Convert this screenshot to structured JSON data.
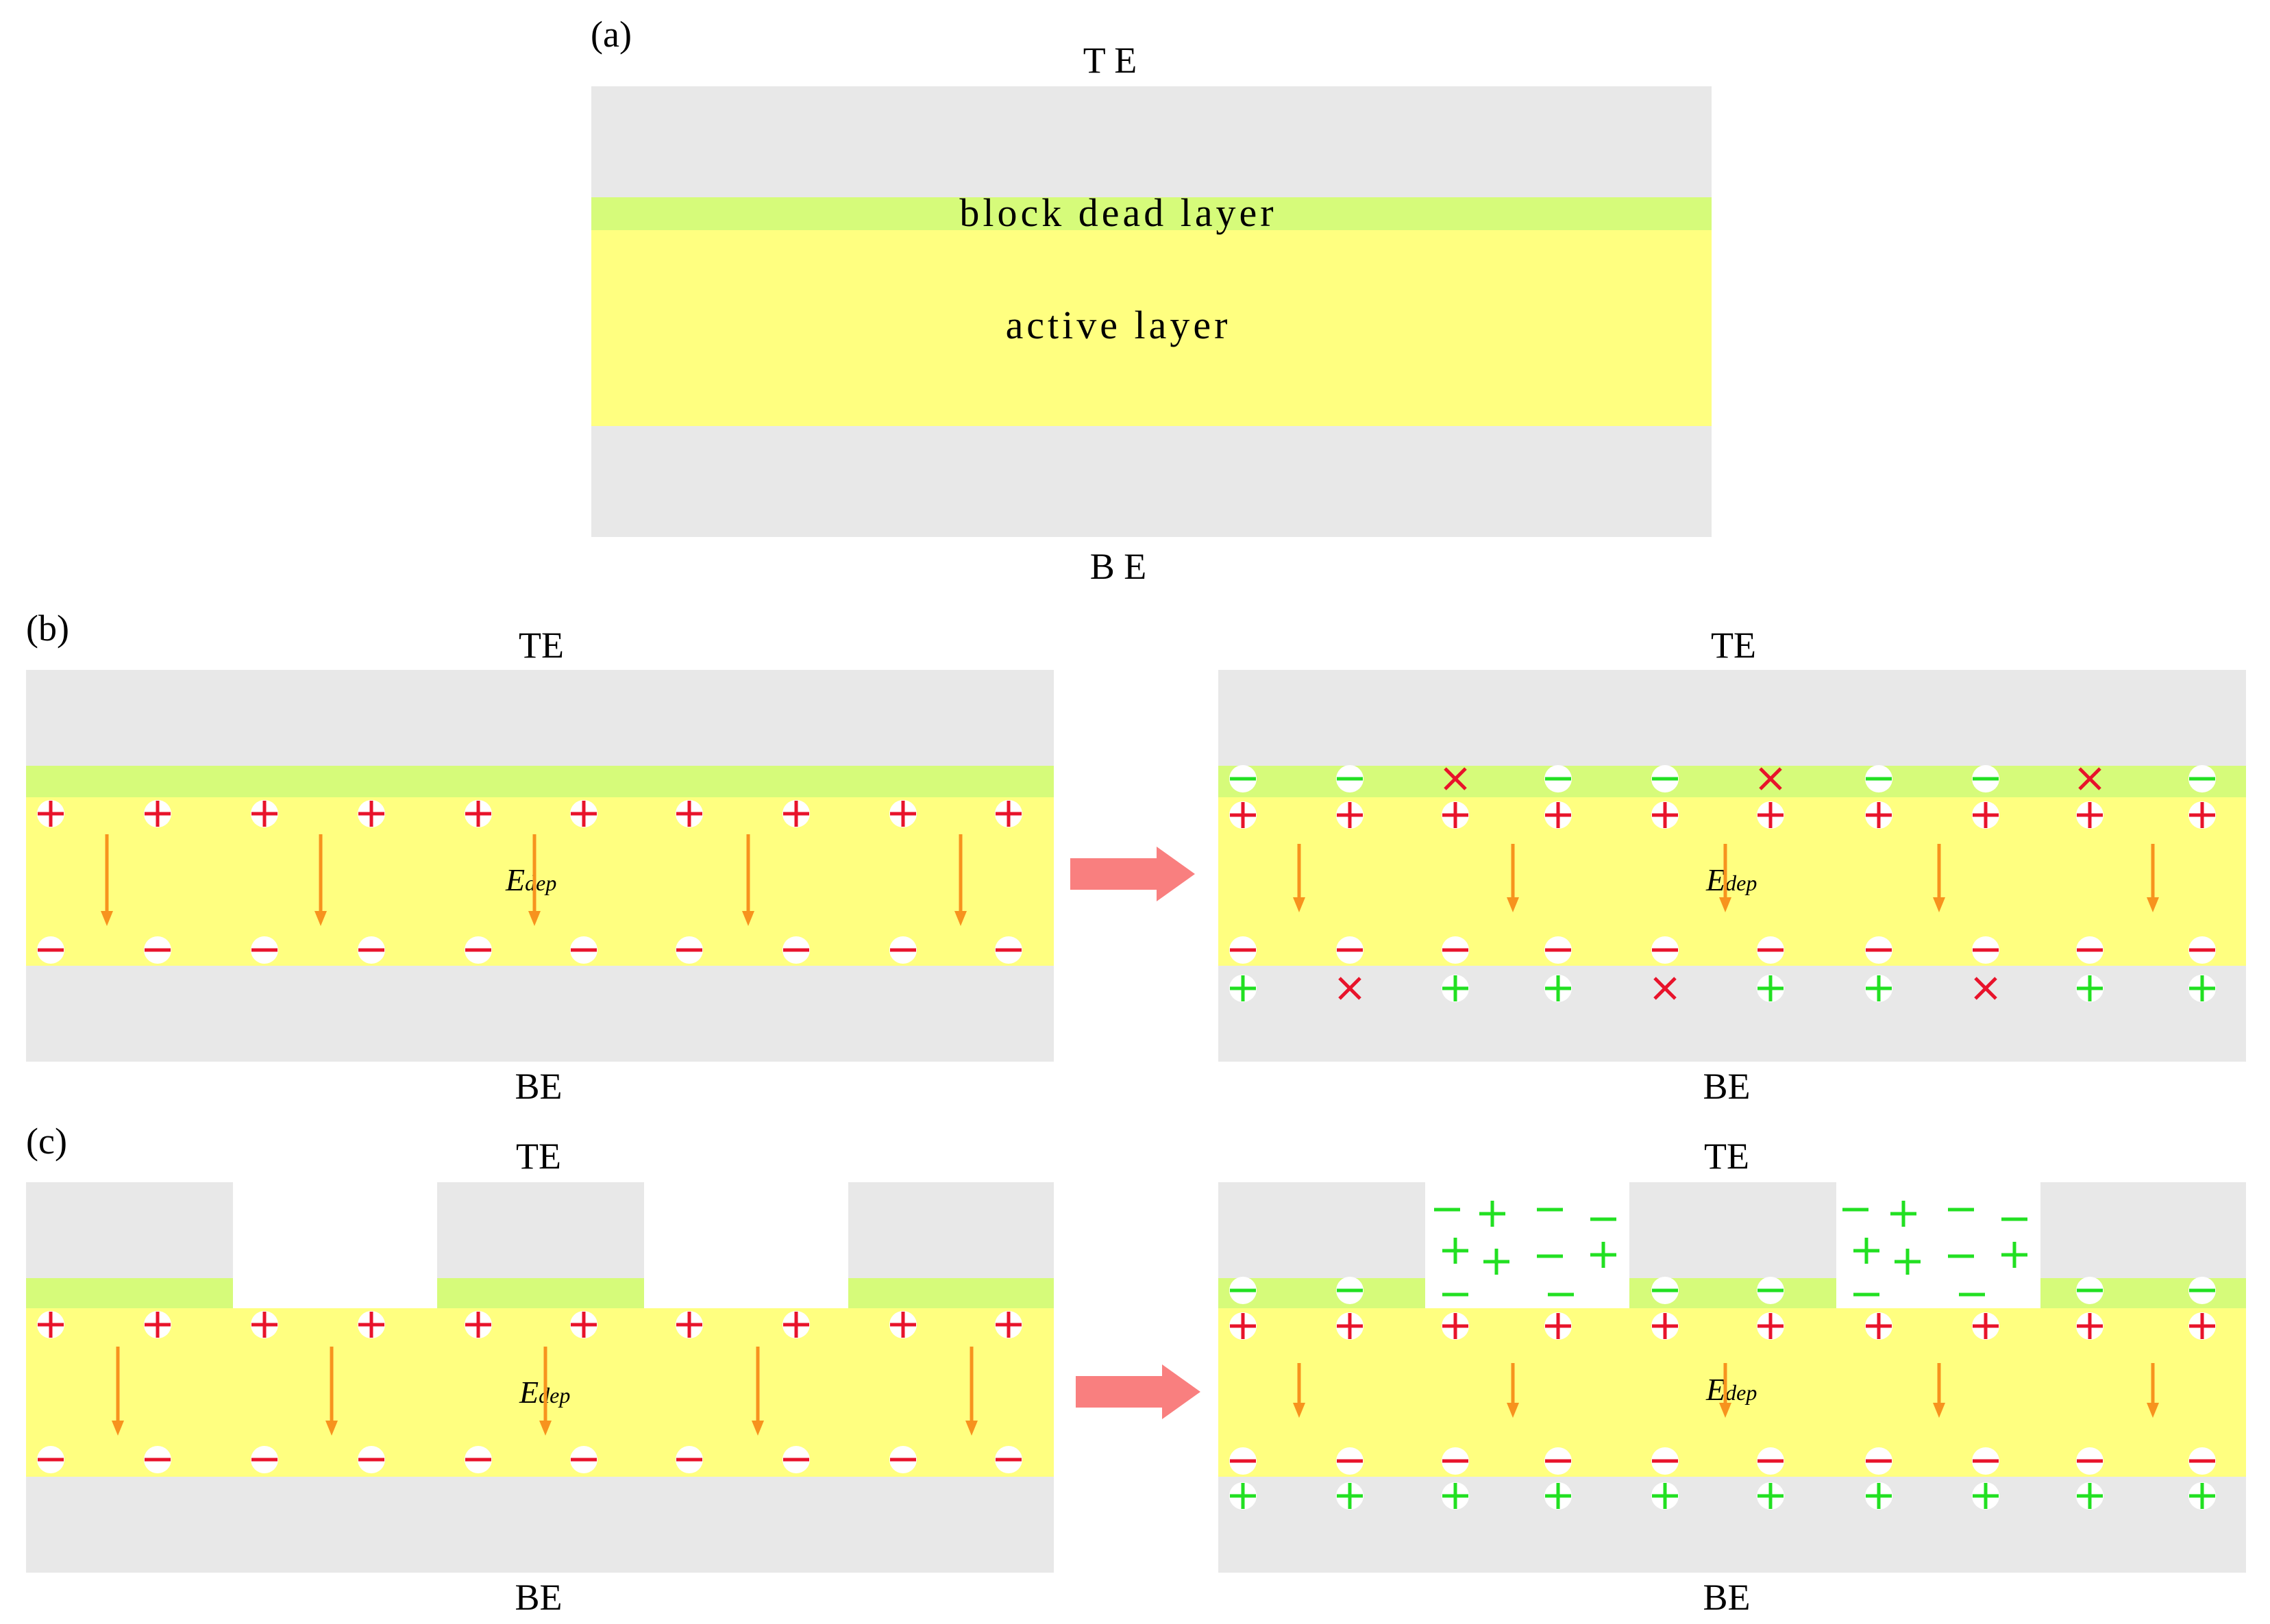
{
  "panels": {
    "a": {
      "label": "(a)",
      "top_electrode": "T E",
      "bottom_electrode": "B E",
      "dead_layer": "block dead layer",
      "active_layer": "active layer"
    },
    "b": {
      "label": "(b)",
      "left": {
        "top_electrode": "TE",
        "bottom_electrode": "BE",
        "field": "E",
        "field_sub": "dep"
      },
      "right": {
        "top_electrode": "TE",
        "bottom_electrode": "BE",
        "field": "E",
        "field_sub": "dep"
      }
    },
    "c": {
      "label": "(c)",
      "left": {
        "top_electrode": "TE",
        "bottom_electrode": "BE",
        "field": "E",
        "field_sub": "dep"
      },
      "right": {
        "top_electrode": "TE",
        "bottom_electrode": "BE",
        "field": "E",
        "field_sub": "dep"
      }
    }
  },
  "colors": {
    "electrode": "#e8e8e8",
    "dead_layer": "#d6fb7a",
    "active_layer": "#ffff80",
    "bound_charge": "#e8132b",
    "free_charge": "#22e022",
    "field_arrow": "#f7931e",
    "transition_arrow": "#f97f7f",
    "annihilated": "#e8132b"
  },
  "icons": {
    "positive": "plus-charge-icon",
    "negative": "minus-charge-icon",
    "neutralized": "cross-mark-icon",
    "field": "field-arrow-icon",
    "transition": "block-arrow-icon"
  }
}
